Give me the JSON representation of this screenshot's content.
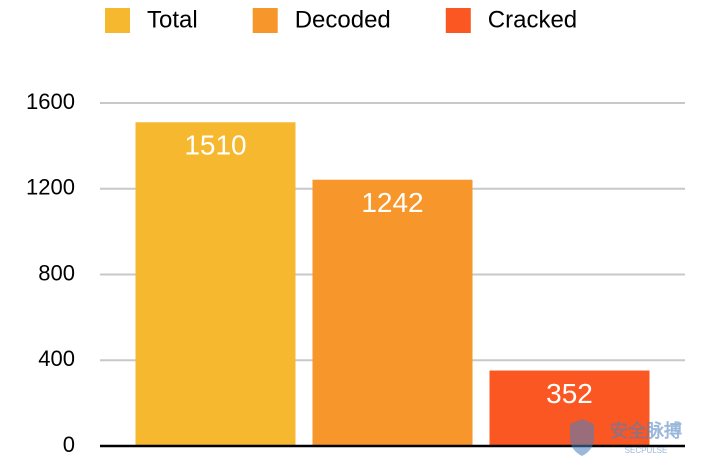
{
  "chart_data": {
    "type": "bar",
    "categories": [
      null
    ],
    "series": [
      {
        "name": "Total",
        "color": "#f5b82e",
        "values": [
          1510
        ]
      },
      {
        "name": "Decoded",
        "color": "#f7962a",
        "values": [
          1242
        ]
      },
      {
        "name": "Cracked",
        "color": "#fb5722",
        "values": [
          352
        ]
      }
    ],
    "ylim": [
      0,
      1600
    ],
    "yticks": [
      0,
      400,
      800,
      1200,
      1600
    ],
    "grid": true,
    "legend": "top",
    "watermark": "安全脉搏",
    "watermark_sub": "SECPULSE"
  }
}
